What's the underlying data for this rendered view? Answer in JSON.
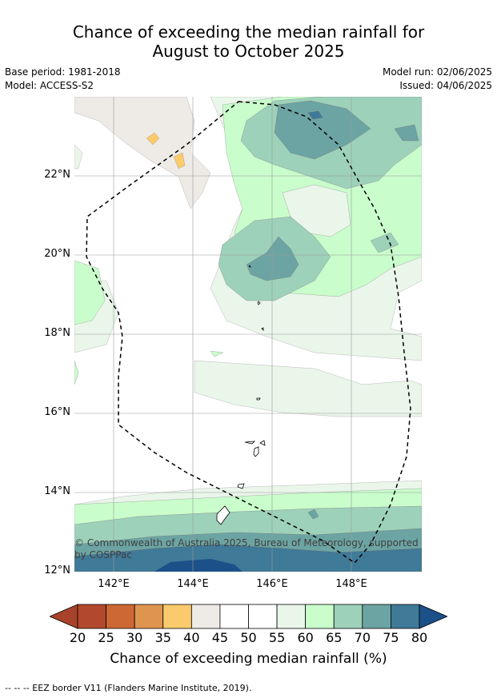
{
  "title": {
    "line1": "Chance of exceeding the median rainfall for",
    "line2": "August to October 2025"
  },
  "meta": {
    "base_period": "Base period: 1981-2018",
    "model": "Model: ACCESS-S2",
    "model_run": "Model run: 02/06/2025",
    "issued": "Issued: 04/06/2025"
  },
  "map": {
    "lat_ticks": [
      "22°N",
      "20°N",
      "18°N",
      "16°N",
      "14°N",
      "12°N"
    ],
    "lon_ticks": [
      "142°E",
      "144°E",
      "146°E",
      "148°E"
    ],
    "copyright": "© Commonwealth of Australia 2025, Bureau of Meteorology, supported by COSPPac",
    "layers": [
      "eez-border",
      "coastline",
      "gridlines",
      "probability-shading"
    ]
  },
  "colorbar": {
    "ticks": [
      "20",
      "25",
      "30",
      "35",
      "40",
      "45",
      "50",
      "55",
      "60",
      "65",
      "70",
      "75",
      "80"
    ],
    "colors": [
      "#a8422a",
      "#b3492c",
      "#cd6733",
      "#df9450",
      "#fbca6d",
      "#eeebe6",
      "#ffffff",
      "#ffffff",
      "#eaf6ea",
      "#c9fdcc",
      "#9dd1ba",
      "#6ca4a3",
      "#3f7a98",
      "#1c5088"
    ],
    "label": "Chance of exceeding median rainfall (%)"
  },
  "footer": "--  --  -- EEZ border V11 (Flanders Marine Institute, 2019)."
}
